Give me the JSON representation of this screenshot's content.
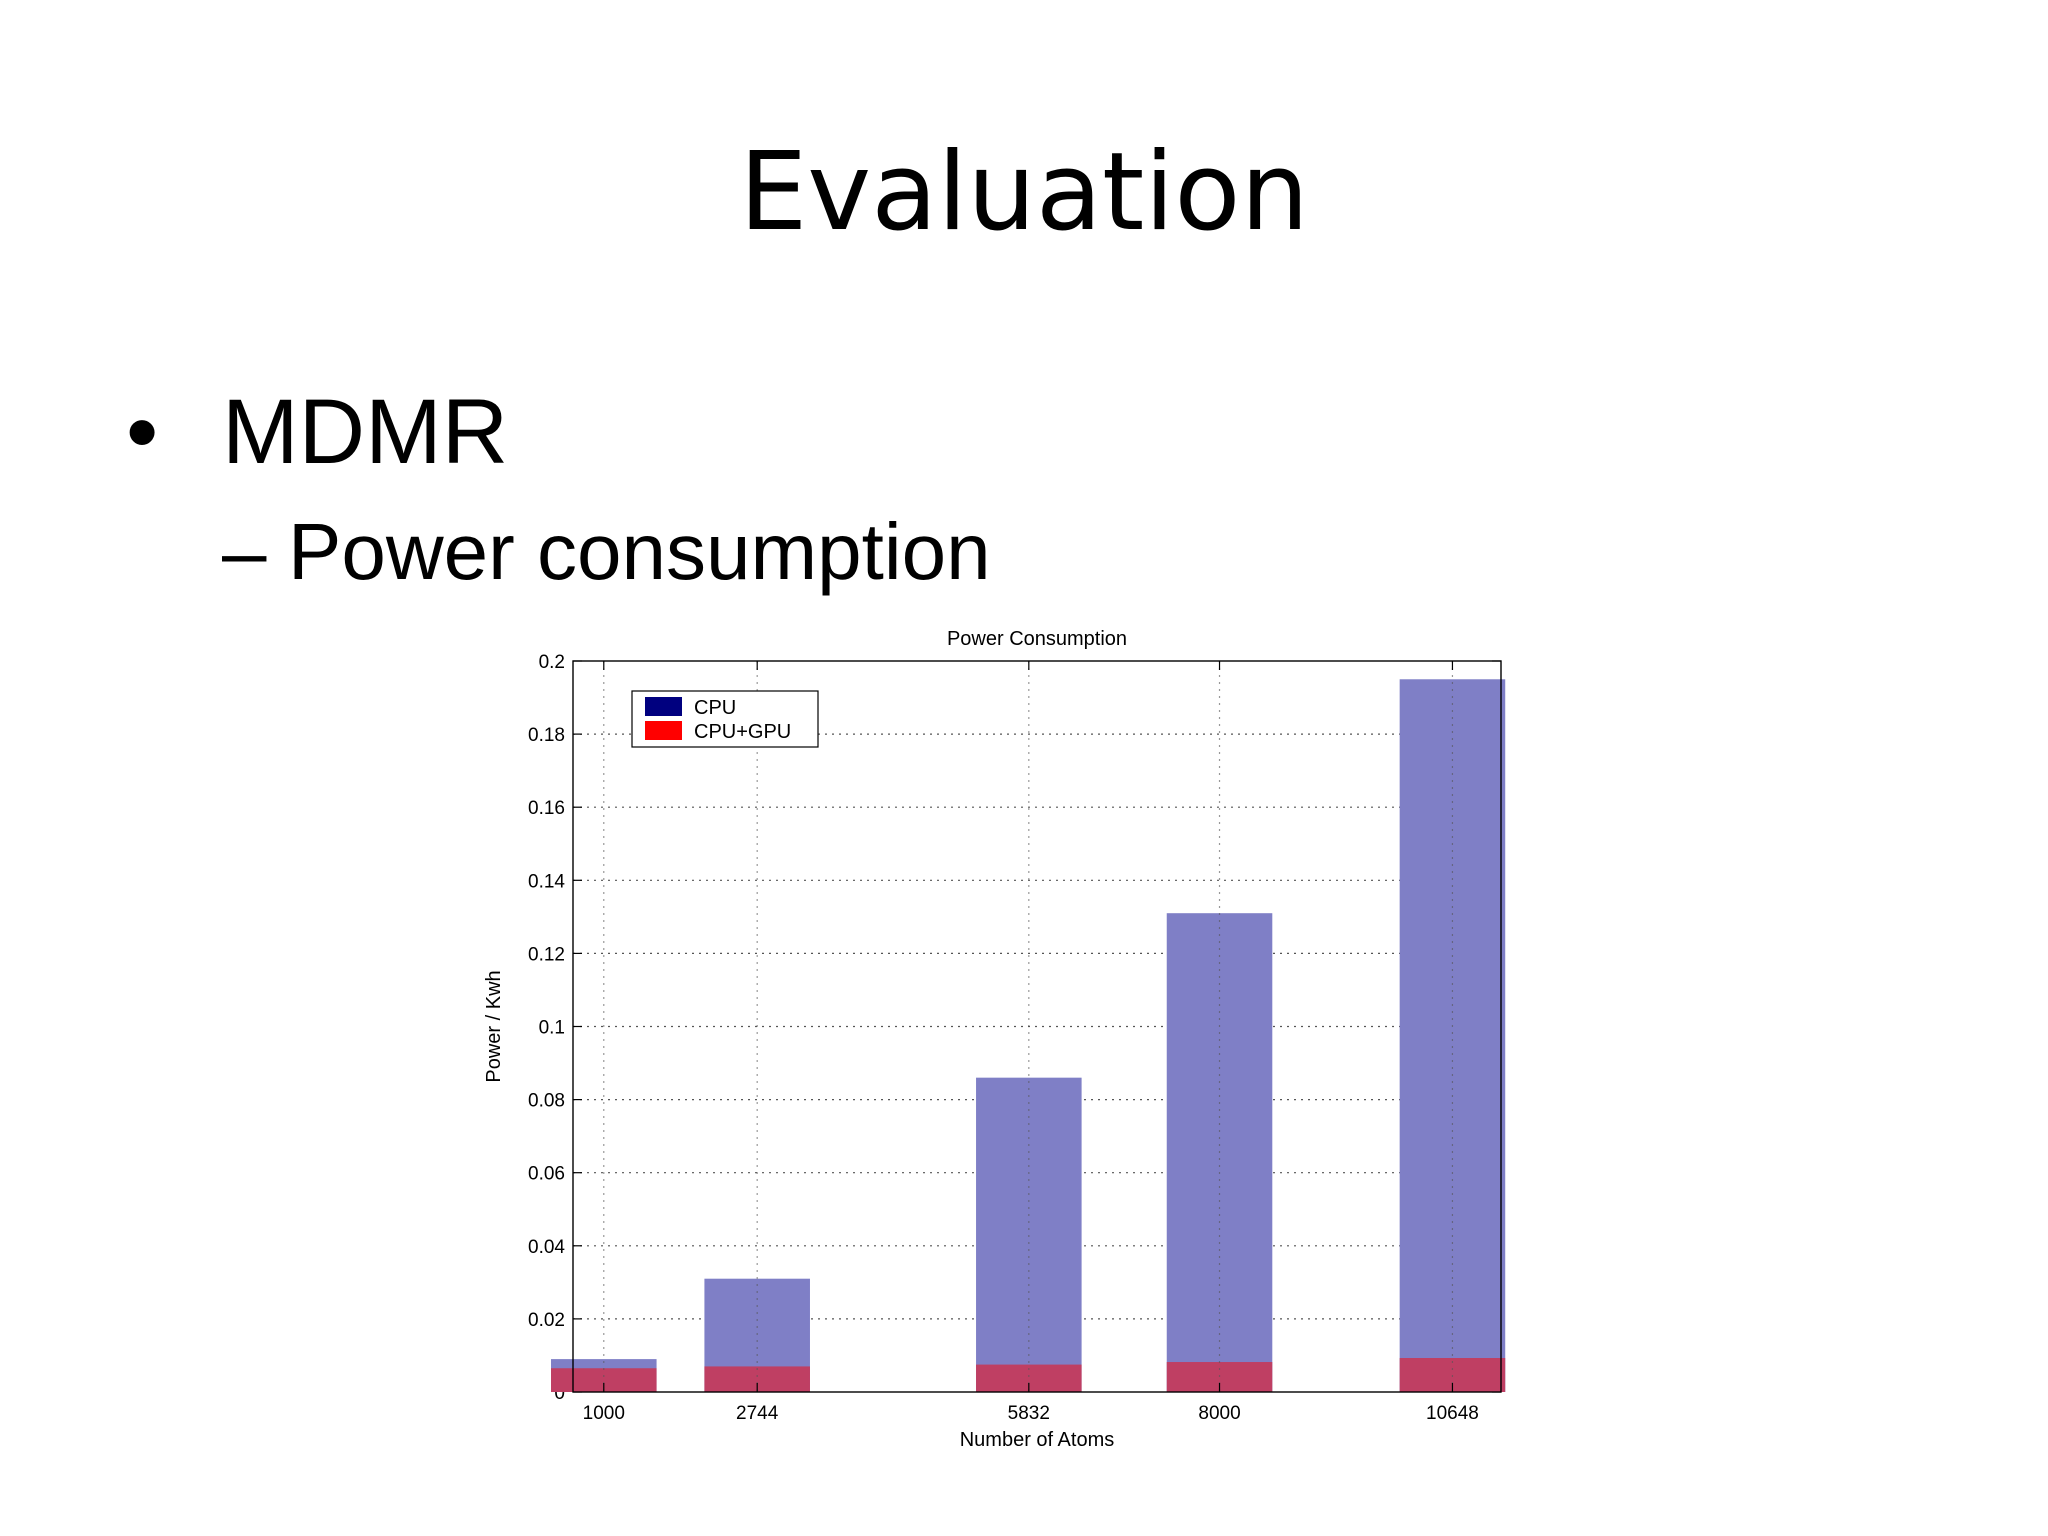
{
  "slide": {
    "title": "Evaluation",
    "bullets": [
      {
        "marker": "•",
        "text": "MDMR"
      },
      {
        "marker": "–",
        "text": "Power consumption"
      }
    ]
  },
  "colors": {
    "cpu": "#7f7fc6",
    "cpu_gpu": "#bf3f63",
    "legend_cpu": "#00007f",
    "legend_cpu_gpu": "#ff0000",
    "grid": "#555555",
    "axes": "#000000"
  },
  "chart_data": {
    "type": "bar",
    "title": "Power Consumption",
    "xlabel": "Number of Atoms",
    "ylabel": "Power / Kwh",
    "x": [
      1000,
      2744,
      5832,
      8000,
      10648
    ],
    "xlim": [
      650,
      11200
    ],
    "ylim": [
      0,
      0.2
    ],
    "yticks": [
      "0",
      "0.02",
      "0.04",
      "0.06",
      "0.08",
      "0.1",
      "0.12",
      "0.14",
      "0.16",
      "0.18",
      "0.2"
    ],
    "bar_width": 1200,
    "grid": true,
    "legend_position": "top-left",
    "series": [
      {
        "name": "CPU",
        "values": [
          0.009,
          0.031,
          0.086,
          0.131,
          0.195
        ]
      },
      {
        "name": "CPU+GPU",
        "values": [
          0.0065,
          0.007,
          0.0075,
          0.0082,
          0.0093
        ]
      }
    ]
  }
}
